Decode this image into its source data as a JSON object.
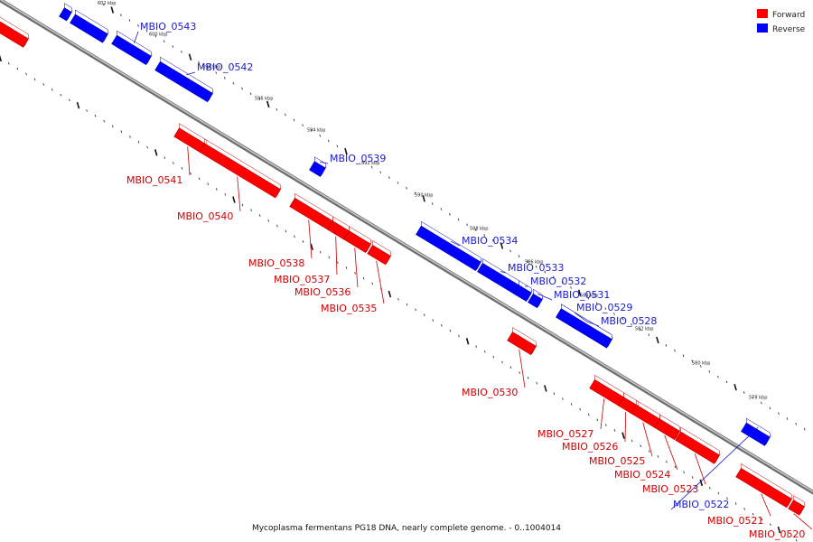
{
  "caption": "Mycoplasma fermentans PG18 DNA, nearly complete genome. - 0..1004014",
  "legend": [
    {
      "label": "Forward",
      "color": "#ff0000"
    },
    {
      "label": "Reverse",
      "color": "#0000ff"
    }
  ],
  "colors": {
    "forward": "#ff0000",
    "forward_dark": "#b30000",
    "reverse": "#0000ff",
    "reverse_dark": "#0000a8",
    "backbone": "#999999",
    "label_forward": "#cc0000",
    "label_reverse": "#1a1acc"
  },
  "tick_labels": [
    "602 kbp",
    "600 kbp",
    "598 kbp",
    "596 kbp",
    "594 kbp",
    "592 kbp",
    "590 kbp",
    "588 kbp",
    "586 kbp",
    "584 kbp",
    "582 kbp",
    "580 kbp",
    "578 kbp"
  ],
  "genes": [
    {
      "name": "MBIO_0543",
      "strand": "reverse"
    },
    {
      "name": "MBIO_0542",
      "strand": "reverse"
    },
    {
      "name": "MBIO_0541",
      "strand": "forward"
    },
    {
      "name": "MBIO_0540",
      "strand": "forward"
    },
    {
      "name": "MBIO_0539",
      "strand": "reverse"
    },
    {
      "name": "MBIO_0538",
      "strand": "forward"
    },
    {
      "name": "MBIO_0537",
      "strand": "forward"
    },
    {
      "name": "MBIO_0536",
      "strand": "forward"
    },
    {
      "name": "MBIO_0535",
      "strand": "forward"
    },
    {
      "name": "MBIO_0534",
      "strand": "reverse"
    },
    {
      "name": "MBIO_0533",
      "strand": "reverse"
    },
    {
      "name": "MBIO_0532",
      "strand": "reverse"
    },
    {
      "name": "MBIO_0531",
      "strand": "reverse"
    },
    {
      "name": "MBIO_0530",
      "strand": "forward"
    },
    {
      "name": "MBIO_0529",
      "strand": "reverse"
    },
    {
      "name": "MBIO_0528",
      "strand": "reverse"
    },
    {
      "name": "MBIO_0527",
      "strand": "forward"
    },
    {
      "name": "MBIO_0526",
      "strand": "forward"
    },
    {
      "name": "MBIO_0525",
      "strand": "forward"
    },
    {
      "name": "MBIO_0524",
      "strand": "forward"
    },
    {
      "name": "MBIO_0523",
      "strand": "forward"
    },
    {
      "name": "MBIO_0522",
      "strand": "reverse"
    },
    {
      "name": "MBIO_0521",
      "strand": "forward"
    },
    {
      "name": "MBIO_0520",
      "strand": "forward"
    }
  ]
}
